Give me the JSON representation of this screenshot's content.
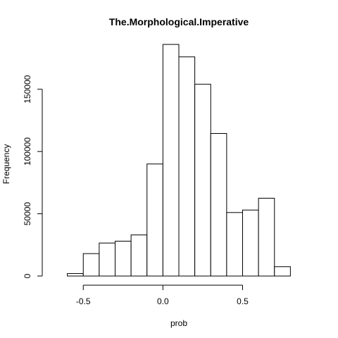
{
  "chart_data": {
    "type": "bar",
    "title": "The.Morphological.Imperative",
    "xlabel": "prob",
    "ylabel": "Frequency",
    "xlim": [
      -0.7,
      0.9
    ],
    "ylim": [
      0,
      190000
    ],
    "x_ticks": [
      -0.5,
      0.0,
      0.5
    ],
    "x_tick_labels": [
      "-0.5",
      "0.0",
      "0.5"
    ],
    "y_ticks": [
      0,
      50000,
      100000,
      150000
    ],
    "y_tick_labels": [
      "0",
      "50000",
      "100000",
      "150000"
    ],
    "bins": [
      {
        "start": -0.6,
        "end": -0.5,
        "count": 2000
      },
      {
        "start": -0.5,
        "end": -0.4,
        "count": 18000
      },
      {
        "start": -0.4,
        "end": -0.3,
        "count": 26500
      },
      {
        "start": -0.3,
        "end": -0.2,
        "count": 28000
      },
      {
        "start": -0.2,
        "end": -0.1,
        "count": 33000
      },
      {
        "start": -0.1,
        "end": 0.0,
        "count": 90000
      },
      {
        "start": 0.0,
        "end": 0.1,
        "count": 186000
      },
      {
        "start": 0.1,
        "end": 0.2,
        "count": 176000
      },
      {
        "start": 0.2,
        "end": 0.3,
        "count": 154000
      },
      {
        "start": 0.3,
        "end": 0.4,
        "count": 114500
      },
      {
        "start": 0.4,
        "end": 0.5,
        "count": 51000
      },
      {
        "start": 0.5,
        "end": 0.6,
        "count": 53000
      },
      {
        "start": 0.6,
        "end": 0.7,
        "count": 62500
      },
      {
        "start": 0.7,
        "end": 0.8,
        "count": 7500
      }
    ],
    "grid": false,
    "legend": "none"
  }
}
